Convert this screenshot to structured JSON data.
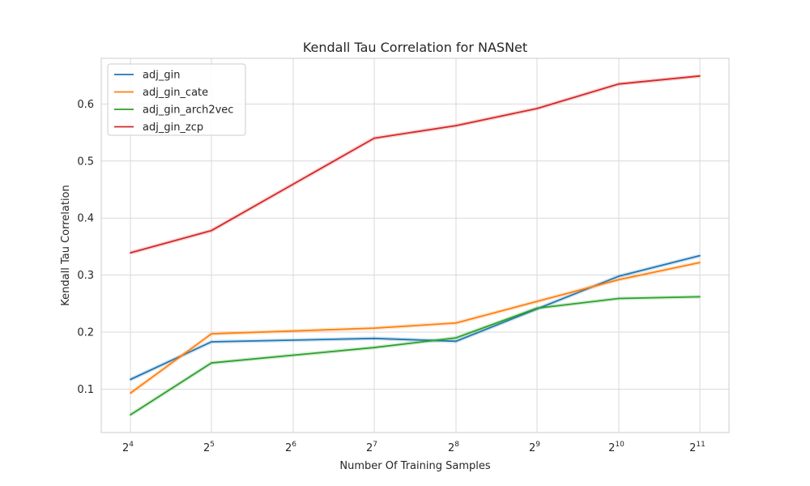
{
  "chart_data": {
    "type": "line",
    "title": "Kendall Tau Correlation for NASNet",
    "xlabel": "Number Of Training Samples",
    "ylabel": "Kendall Tau Correlation",
    "x_scale": "log2",
    "x": [
      16,
      32,
      64,
      128,
      256,
      512,
      1024,
      2048
    ],
    "x_ticks": [
      {
        "base": "2",
        "exp": "4"
      },
      {
        "base": "2",
        "exp": "5"
      },
      {
        "base": "2",
        "exp": "6"
      },
      {
        "base": "2",
        "exp": "7"
      },
      {
        "base": "2",
        "exp": "8"
      },
      {
        "base": "2",
        "exp": "9"
      },
      {
        "base": "2",
        "exp": "10"
      },
      {
        "base": "2",
        "exp": "11"
      }
    ],
    "y_ticks": [
      "0.1",
      "0.2",
      "0.3",
      "0.4",
      "0.5",
      "0.6"
    ],
    "ylim": [
      0.024,
      0.68
    ],
    "grid": true,
    "legend_position": "top-left",
    "series": [
      {
        "name": "adj_gin",
        "color": "#1f77b4",
        "values": [
          0.117,
          0.183,
          null,
          0.189,
          0.184,
          null,
          0.298,
          0.334
        ]
      },
      {
        "name": "adj_gin_cate",
        "color": "#ff7f0e",
        "values": [
          0.093,
          0.197,
          null,
          0.207,
          0.216,
          null,
          0.292,
          0.322
        ]
      },
      {
        "name": "adj_gin_arch2vec",
        "color": "#2ca02c",
        "values": [
          0.055,
          0.146,
          null,
          0.173,
          0.19,
          0.242,
          0.259,
          0.262
        ]
      },
      {
        "name": "adj_gin_zcp",
        "color": "#d62728",
        "values": [
          0.339,
          0.378,
          null,
          0.54,
          0.562,
          0.592,
          0.635,
          0.649
        ]
      }
    ]
  }
}
